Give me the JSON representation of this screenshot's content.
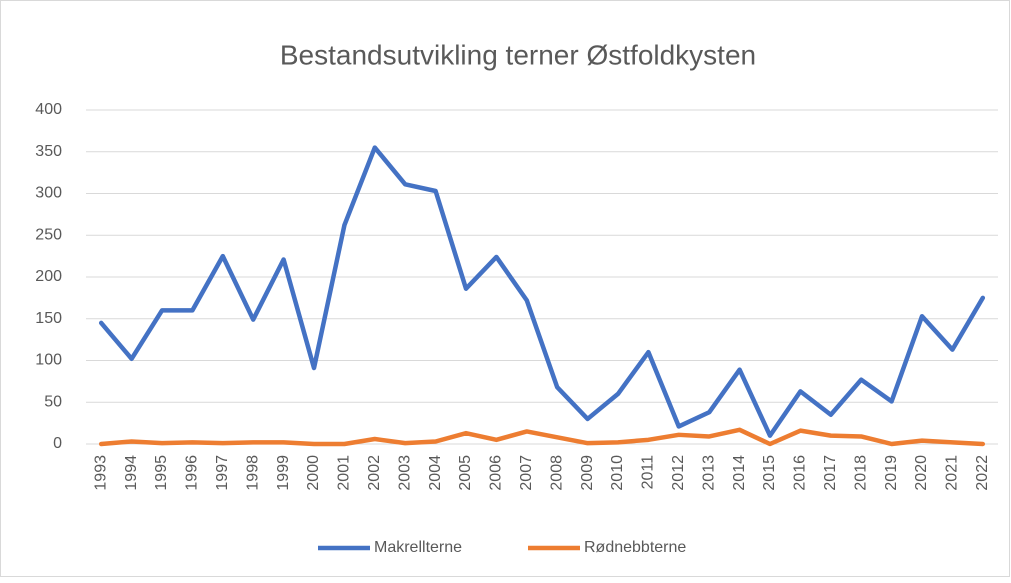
{
  "chart_data": {
    "type": "line",
    "title": "Bestandsutvikling terner Østfoldkysten",
    "categories": [
      "1993",
      "1994",
      "1995",
      "1996",
      "1997",
      "1998",
      "1999",
      "2000",
      "2001",
      "2002",
      "2003",
      "2004",
      "2005",
      "2006",
      "2007",
      "2008",
      "2009",
      "2010",
      "2011",
      "2012",
      "2013",
      "2014",
      "2015",
      "2016",
      "2017",
      "2018",
      "2019",
      "2020",
      "2021",
      "2022"
    ],
    "series": [
      {
        "name": "Makrellterne",
        "color": "#4472c4",
        "values": [
          145,
          102,
          160,
          160,
          225,
          149,
          221,
          91,
          262,
          355,
          311,
          303,
          186,
          224,
          172,
          68,
          30,
          60,
          110,
          21,
          38,
          89,
          10,
          63,
          35,
          77,
          51,
          153,
          113,
          175
        ]
      },
      {
        "name": "Rødnebbterne",
        "color": "#ed7d31",
        "values": [
          0,
          3,
          1,
          2,
          1,
          2,
          2,
          0,
          0,
          6,
          1,
          3,
          13,
          5,
          15,
          8,
          1,
          2,
          5,
          11,
          9,
          17,
          0,
          16,
          10,
          9,
          0,
          4,
          2,
          0
        ]
      }
    ],
    "ylim": [
      0,
      400
    ],
    "yticks": [
      0,
      50,
      100,
      150,
      200,
      250,
      300,
      350,
      400
    ],
    "grid": true,
    "legend": "bottom"
  }
}
